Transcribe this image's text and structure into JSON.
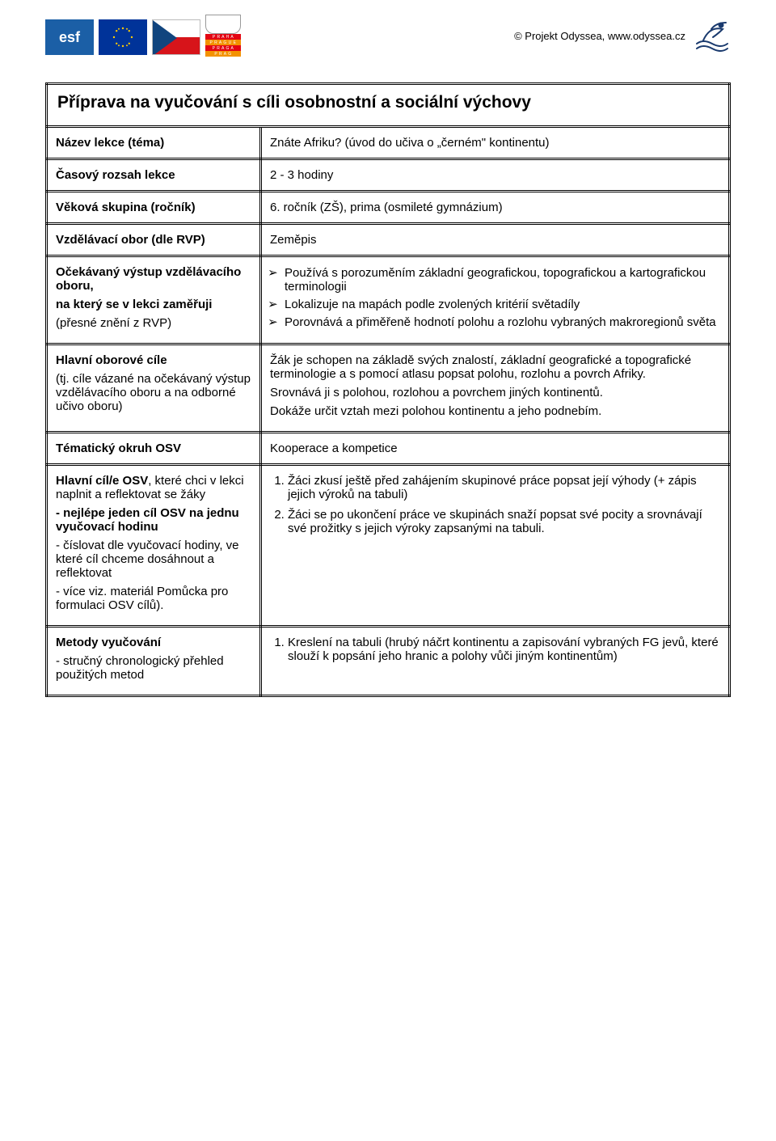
{
  "header": {
    "copyright": "© Projekt Odyssea, www.odyssea.cz",
    "esf_text": "esf",
    "praha_rows": [
      {
        "text": "P R A H A",
        "bg": "#e30613"
      },
      {
        "text": "P R A G U E",
        "bg": "#f39200"
      },
      {
        "text": "P R A G A",
        "bg": "#e30613"
      },
      {
        "text": "P R A G",
        "bg": "#f39200"
      }
    ]
  },
  "title": "Příprava na vyučování s cíli osobnostní a sociální výchovy",
  "rows": {
    "r1": {
      "label": "Název lekce (téma)",
      "value": "Znáte Afriku? (úvod do učiva o „černém\" kontinentu)"
    },
    "r2": {
      "label": "Časový rozsah lekce",
      "value": "2 - 3 hodiny"
    },
    "r3": {
      "label": "Věková skupina (ročník)",
      "value": "6. ročník (ZŠ), prima (osmileté gymnázium)"
    },
    "r4": {
      "label": "Vzdělávací obor (dle RVP)",
      "value": "Zeměpis"
    },
    "r5": {
      "label_l1": "Očekávaný výstup vzdělávacího oboru,",
      "label_l2": "na který se v lekci zaměřuji",
      "label_l3": "(přesné znění z RVP)",
      "b1": "Používá s porozuměním základní geografickou, topografickou a kartografickou terminologii",
      "b2": "Lokalizuje na mapách podle zvolených kritérií světadíly",
      "b3": "Porovnává a přiměřeně hodnotí polohu a rozlohu vybraných makroregionů světa"
    },
    "r6": {
      "label_l1": "Hlavní oborové cíle",
      "label_l2": "(tj. cíle vázané na očekávaný výstup vzdělávacího oboru a na odborné učivo oboru)",
      "p1": "Žák je schopen na základě svých znalostí, základní geografické a topografické terminologie a s pomocí atlasu popsat polohu, rozlohu a povrch Afriky.",
      "p2": "Srovnává ji s polohou, rozlohou a povrchem jiných kontinentů.",
      "p3": "Dokáže určit vztah mezi polohou kontinentu a jeho podnebím."
    },
    "r7": {
      "label": "Tématický okruh OSV",
      "value": "Kooperace a kompetice"
    },
    "r8": {
      "label_b1": "Hlavní cíl/e OSV",
      "label_l1": ", které chci v lekci naplnit a reflektovat se žáky",
      "label_b2": "- nejlépe jeden cíl OSV na jednu vyučovací hodinu",
      "label_l3": "- číslovat dle vyučovací hodiny, ve které cíl chceme dosáhnout a reflektovat",
      "label_l4": "- více viz. materiál Pomůcka pro formulaci OSV cílů).",
      "n1": "Žáci zkusí ještě před zahájením skupinové práce popsat její výhody (+ zápis jejich výroků na tabuli)",
      "n2": "Žáci se po ukončení práce ve skupinách snaží popsat své pocity a srovnávají své prožitky s jejich výroky zapsanými na tabuli."
    },
    "r9": {
      "label_l1": "Metody vyučování",
      "label_l2": "- stručný chronologický přehled použitých metod",
      "n1": "Kreslení na tabuli (hrubý náčrt kontinentu a zapisování vybraných FG jevů, které slouží k popsání jeho hranic a polohy vůči jiným kontinentům)"
    }
  }
}
